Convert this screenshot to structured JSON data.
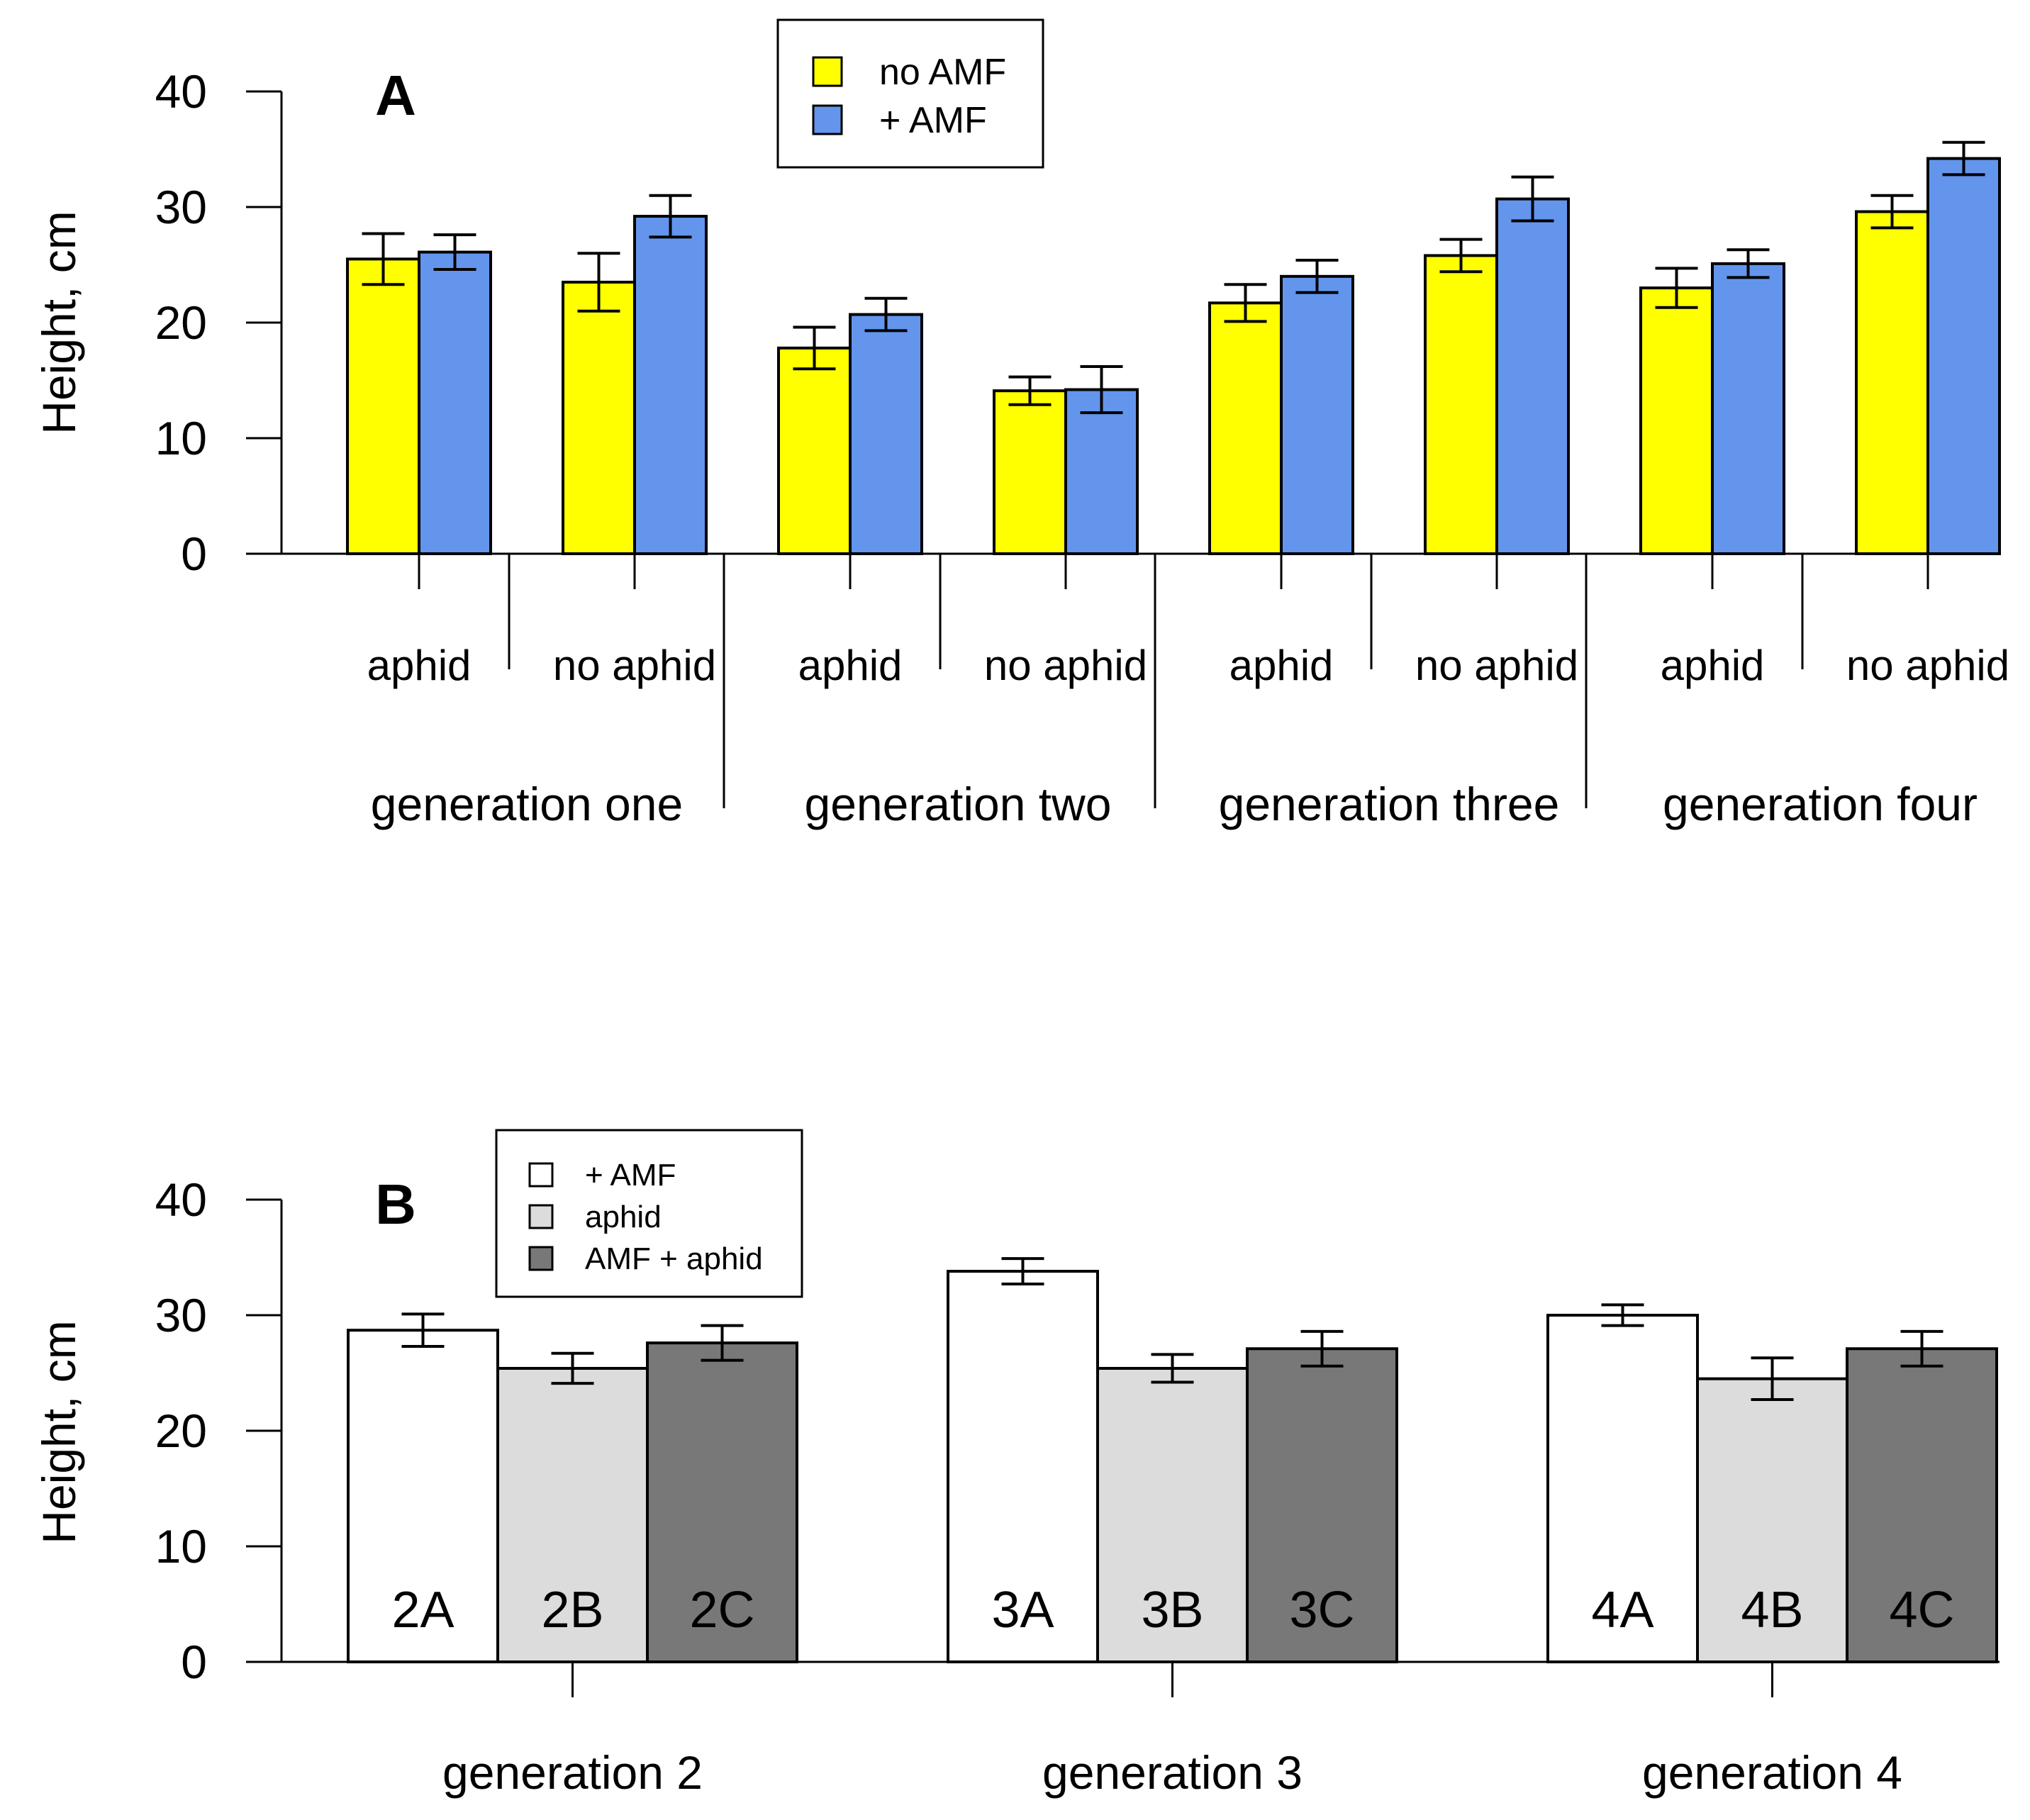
{
  "chart_data": [
    {
      "type": "bar",
      "panel": "A",
      "ylabel": "Height, cm",
      "ylim": [
        0,
        40
      ],
      "yticks": [
        0,
        10,
        20,
        30,
        40
      ],
      "legend": {
        "position": "top-center",
        "entries": [
          {
            "label": "no AMF",
            "color": "#ffff00"
          },
          {
            "label": "+ AMF",
            "color": "#6495ed"
          }
        ]
      },
      "groups": [
        {
          "label": "generation one",
          "categories": [
            {
              "label": "aphid",
              "values": [
                25.5,
                26.1
              ],
              "errors": [
                2.2,
                1.5
              ]
            },
            {
              "label": "no aphid",
              "values": [
                23.5,
                29.2
              ],
              "errors": [
                2.5,
                1.8
              ]
            }
          ]
        },
        {
          "label": "generation two",
          "categories": [
            {
              "label": "aphid",
              "values": [
                17.8,
                20.7
              ],
              "errors": [
                1.8,
                1.4
              ]
            },
            {
              "label": "no aphid",
              "values": [
                14.1,
                14.2
              ],
              "errors": [
                1.2,
                2.0
              ]
            }
          ]
        },
        {
          "label": "generation three",
          "categories": [
            {
              "label": "aphid",
              "values": [
                21.7,
                24.0
              ],
              "errors": [
                1.6,
                1.4
              ]
            },
            {
              "label": "no aphid",
              "values": [
                25.8,
                30.7
              ],
              "errors": [
                1.4,
                1.9
              ]
            }
          ]
        },
        {
          "label": "generation four",
          "categories": [
            {
              "label": "aphid",
              "values": [
                23.0,
                25.1
              ],
              "errors": [
                1.7,
                1.2
              ]
            },
            {
              "label": "no aphid",
              "values": [
                29.6,
                34.2
              ],
              "errors": [
                1.4,
                1.4
              ]
            }
          ]
        }
      ]
    },
    {
      "type": "bar",
      "panel": "B",
      "ylabel": "Height, cm",
      "ylim": [
        0,
        40
      ],
      "yticks": [
        0,
        10,
        20,
        30,
        40
      ],
      "legend": {
        "position": "top-center",
        "entries": [
          {
            "label": "+ AMF",
            "color": "#ffffff"
          },
          {
            "label": "aphid",
            "color": "#dcdcdc"
          },
          {
            "label": "AMF + aphid",
            "color": "#787878"
          }
        ]
      },
      "groups": [
        {
          "label": "generation 2",
          "bars": [
            {
              "label": "2A",
              "value": 28.7,
              "error": 1.4
            },
            {
              "label": "2B",
              "value": 25.4,
              "error": 1.3
            },
            {
              "label": "2C",
              "value": 27.6,
              "error": 1.5
            }
          ]
        },
        {
          "label": "generation 3",
          "bars": [
            {
              "label": "3A",
              "value": 33.8,
              "error": 1.1
            },
            {
              "label": "3B",
              "value": 25.4,
              "error": 1.2
            },
            {
              "label": "3C",
              "value": 27.1,
              "error": 1.5
            }
          ]
        },
        {
          "label": "generation 4",
          "bars": [
            {
              "label": "4A",
              "value": 30.0,
              "error": 0.9
            },
            {
              "label": "4B",
              "value": 24.5,
              "error": 1.8
            },
            {
              "label": "4C",
              "value": 27.1,
              "error": 1.5
            }
          ]
        }
      ]
    }
  ]
}
